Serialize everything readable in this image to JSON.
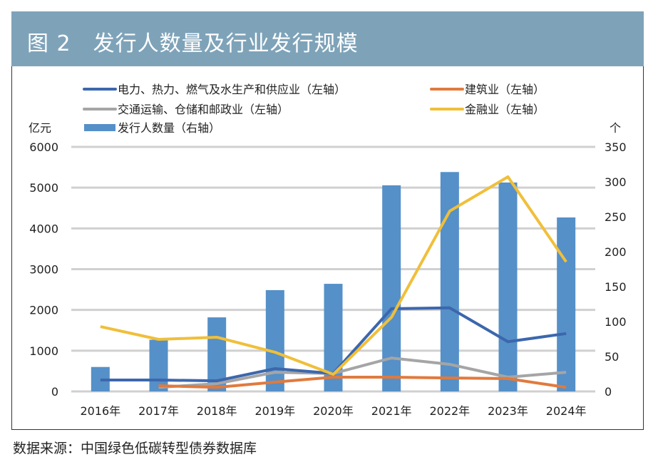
{
  "header": {
    "title": "图 2　发行人数量及行业发行规模"
  },
  "source": "数据来源：中国绿色低碳转型债券数据库",
  "colors": {
    "header_bg": "#7ea3b9",
    "bar": "#5590c8",
    "power": "#3c67ad",
    "construction": "#e07a3e",
    "transport": "#a5a5a5",
    "finance": "#f0bf3a",
    "grid": "#d0d0d0"
  },
  "chart_data": {
    "type": "bar+line",
    "categories": [
      "2016年",
      "2017年",
      "2018年",
      "2019年",
      "2020年",
      "2021年",
      "2022年",
      "2023年",
      "2024年"
    ],
    "y_left": {
      "label": "亿元",
      "range": [
        0,
        6000
      ],
      "ticks": [
        0,
        1000,
        2000,
        3000,
        4000,
        5000,
        6000
      ]
    },
    "y_right": {
      "label": "个",
      "range": [
        0,
        350
      ],
      "ticks": [
        0,
        50,
        100,
        150,
        200,
        250,
        300,
        350
      ]
    },
    "grid": true,
    "legend_position": "top",
    "bars": {
      "name": "发行人数量（右轴）",
      "axis": "right",
      "values": [
        35,
        74,
        106,
        145,
        154,
        295,
        314,
        299,
        249
      ]
    },
    "series": [
      {
        "name": "电力、热力、燃气及水生产和供应业（左轴）",
        "key": "power",
        "axis": "left",
        "values": [
          280,
          280,
          260,
          560,
          440,
          2030,
          2050,
          1220,
          1420
        ]
      },
      {
        "name": "建筑业（左轴）",
        "key": "construction",
        "axis": "left",
        "values": [
          null,
          140,
          100,
          230,
          350,
          350,
          330,
          315,
          100
        ]
      },
      {
        "name": "交通运输、仓储和邮政业（左轴）",
        "key": "transport",
        "axis": "left",
        "values": [
          null,
          100,
          190,
          470,
          440,
          820,
          665,
          350,
          470
        ]
      },
      {
        "name": "金融业（左轴）",
        "key": "finance",
        "axis": "left",
        "values": [
          1590,
          1277,
          1330,
          962,
          420,
          1820,
          4425,
          5265,
          3180
        ]
      }
    ]
  }
}
